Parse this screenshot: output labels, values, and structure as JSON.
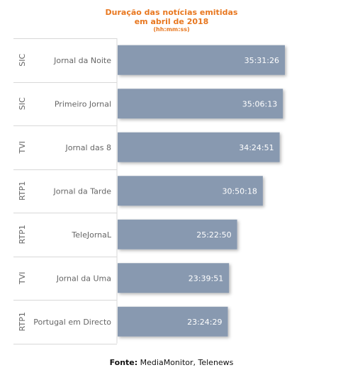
{
  "chart_data": {
    "type": "bar",
    "orientation": "horizontal",
    "title": "Duração das notícias emitidas",
    "title_line2": "em abril de 2018",
    "subtitle": "(hh:mm:ss)",
    "channels": [
      "SIC",
      "SIC",
      "TVI",
      "RTP1",
      "RTP1",
      "TVI",
      "RTP1"
    ],
    "categories": [
      "Jornal da Noite",
      "Primeiro Jornal",
      "Jornal das 8",
      "Jornal da Tarde",
      "TeleJornaL",
      "Jornal da Uma",
      "Portugal em Directo"
    ],
    "value_labels": [
      "35:31:26",
      "35:06:13",
      "34:24:51",
      "30:50:18",
      "25:22:50",
      "23:39:51",
      "23:24:29"
    ],
    "values_hours": [
      35.524,
      35.104,
      34.414,
      30.838,
      25.381,
      23.664,
      23.408
    ],
    "bar_color": "#8899b0"
  },
  "footer": {
    "label": "Fonte:",
    "text": "MediaMonitor, Telenews"
  }
}
